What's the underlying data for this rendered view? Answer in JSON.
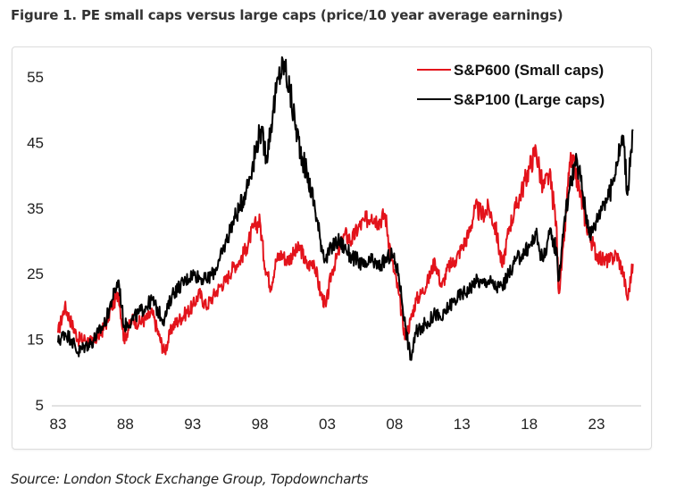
{
  "figure": {
    "title": "Figure 1. PE small caps versus large caps (price/10 year average earnings)",
    "source": "Source: London Stock Exchange Group, Topdowncharts"
  },
  "chart_data": {
    "type": "line",
    "title": "PE small caps versus large caps (price/10 year average earnings)",
    "xlabel": "",
    "ylabel": "",
    "xlim": [
      1983,
      2025.8
    ],
    "ylim": [
      5,
      58
    ],
    "yticks": [
      5,
      15,
      25,
      35,
      45,
      55
    ],
    "ytick_labels": [
      "5",
      "15",
      "25",
      "35",
      "45",
      "55"
    ],
    "xticks": [
      1983,
      1988,
      1993,
      1998,
      2003,
      2008,
      2013,
      2018,
      2023
    ],
    "xtick_labels": [
      "83",
      "88",
      "93",
      "98",
      "03",
      "08",
      "13",
      "18",
      "23"
    ],
    "grid": false,
    "legend": "top-right",
    "series": [
      {
        "name": "S&P600 (Small caps)",
        "color": "#e3131b",
        "x": [
          1983.0,
          1983.5,
          1984.0,
          1984.5,
          1985.0,
          1985.5,
          1986.0,
          1986.5,
          1987.0,
          1987.5,
          1987.9,
          1988.5,
          1989.0,
          1989.5,
          1990.0,
          1990.5,
          1990.9,
          1991.5,
          1992.0,
          1992.5,
          1993.0,
          1993.5,
          1994.0,
          1994.5,
          1995.0,
          1995.5,
          1996.0,
          1996.5,
          1997.0,
          1997.5,
          1998.0,
          1998.3,
          1998.8,
          1999.2,
          1999.6,
          2000.0,
          2000.5,
          2001.0,
          2001.5,
          2002.0,
          2002.5,
          2002.9,
          2003.3,
          2003.8,
          2004.3,
          2004.8,
          2005.3,
          2005.8,
          2006.3,
          2006.8,
          2007.3,
          2007.8,
          2008.3,
          2008.8,
          2009.2,
          2009.6,
          2010.0,
          2010.5,
          2011.0,
          2011.5,
          2012.0,
          2012.5,
          2013.0,
          2013.5,
          2014.0,
          2014.5,
          2015.0,
          2015.5,
          2016.0,
          2016.5,
          2017.0,
          2017.5,
          2018.0,
          2018.5,
          2019.0,
          2019.5,
          2020.0,
          2020.2,
          2020.6,
          2021.0,
          2021.4,
          2021.8,
          2022.2,
          2022.6,
          2023.0,
          2023.5,
          2024.0,
          2024.5,
          2025.0,
          2025.3,
          2025.7
        ],
        "values": [
          16,
          20,
          17.5,
          15,
          15,
          14.5,
          15.5,
          17,
          20,
          22,
          15,
          18,
          17.5,
          18,
          19,
          15.5,
          13,
          17,
          18,
          19,
          20,
          22,
          20,
          21.5,
          23,
          24,
          26,
          27,
          29,
          32,
          33,
          27,
          23,
          27,
          28,
          27,
          28,
          29,
          26,
          27,
          22,
          20,
          25,
          28,
          31,
          30,
          32,
          33,
          34,
          33,
          34,
          27,
          22,
          15,
          18,
          21,
          22,
          24,
          27,
          23,
          26,
          27,
          29,
          31,
          35,
          34,
          35,
          32,
          26,
          32,
          35,
          38,
          41,
          44,
          38,
          40,
          33,
          22,
          30,
          42,
          41,
          37,
          33,
          30,
          28,
          27,
          27,
          28,
          25,
          21,
          26.5
        ]
      },
      {
        "name": "S&P100 (Large caps)",
        "color": "#000000",
        "x": [
          1983.0,
          1983.5,
          1984.0,
          1984.5,
          1985.0,
          1985.5,
          1986.0,
          1986.5,
          1987.0,
          1987.5,
          1987.9,
          1988.5,
          1989.0,
          1989.5,
          1990.0,
          1990.5,
          1990.9,
          1991.5,
          1992.0,
          1992.5,
          1993.0,
          1993.5,
          1994.0,
          1994.5,
          1995.0,
          1995.5,
          1996.0,
          1996.5,
          1997.0,
          1997.5,
          1998.0,
          1998.5,
          1999.0,
          1999.4,
          1999.8,
          2000.2,
          2000.6,
          2001.0,
          2001.5,
          2002.0,
          2002.5,
          2002.9,
          2003.3,
          2003.8,
          2004.3,
          2004.8,
          2005.3,
          2005.8,
          2006.3,
          2006.8,
          2007.3,
          2007.8,
          2008.3,
          2008.8,
          2009.2,
          2009.6,
          2010.0,
          2010.5,
          2011.0,
          2011.5,
          2012.0,
          2012.5,
          2013.0,
          2013.5,
          2014.0,
          2014.5,
          2015.0,
          2015.5,
          2016.0,
          2016.5,
          2017.0,
          2017.5,
          2018.0,
          2018.5,
          2019.0,
          2019.5,
          2020.0,
          2020.2,
          2020.6,
          2021.0,
          2021.4,
          2021.8,
          2022.2,
          2022.6,
          2023.0,
          2023.5,
          2024.0,
          2024.5,
          2025.0,
          2025.3,
          2025.7
        ],
        "values": [
          14.5,
          16,
          15,
          13,
          14,
          14.5,
          16,
          17.5,
          21,
          24,
          17,
          18,
          19,
          20,
          21,
          19,
          18,
          22,
          23,
          24,
          25,
          24.5,
          24,
          25,
          27,
          30,
          33,
          35,
          38,
          42,
          47,
          43,
          50,
          55,
          57,
          53,
          48,
          44,
          40,
          36,
          30,
          27,
          29,
          30,
          29,
          27.5,
          27,
          26,
          27,
          26,
          27,
          28,
          25,
          17,
          12,
          16,
          17,
          17.5,
          19,
          18,
          20,
          21,
          22,
          22.5,
          24,
          23.5,
          24,
          23,
          23,
          25,
          27,
          28,
          29,
          31,
          27,
          31,
          29,
          24,
          33,
          38,
          42,
          40,
          34,
          31,
          33,
          36,
          37,
          42,
          46,
          37,
          47
        ]
      }
    ]
  }
}
